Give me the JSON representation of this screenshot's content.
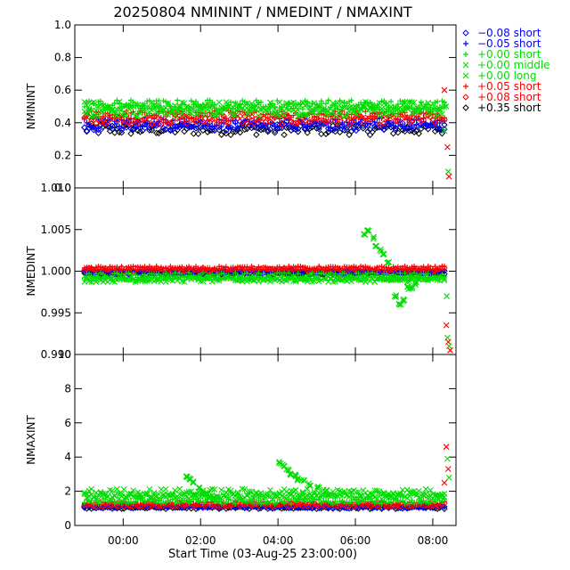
{
  "chart_data": {
    "type": "scatter",
    "title": "20250804 NMININT / NMEDINT / NMAXINT",
    "xlabel": "Start Time (03-Aug-25 23:00:00)",
    "x_unit": "hours since 03-Aug-25 23:00",
    "xlim": [
      -0.25,
      9.6
    ],
    "x_ticks": [
      1,
      3,
      5,
      7,
      9
    ],
    "x_tick_labels": [
      "00:00",
      "02:00",
      "04:00",
      "06:00",
      "08:00"
    ],
    "legend_position": "top-right",
    "legend": [
      {
        "marker": "diamond",
        "color": "#0000ff",
        "label": "−0.08 short"
      },
      {
        "marker": "plus",
        "color": "#0000ff",
        "label": "−0.05 short"
      },
      {
        "marker": "plus",
        "color": "#00dd00",
        "label": "+0.00 short"
      },
      {
        "marker": "cross",
        "color": "#00dd00",
        "label": "+0.00 middle"
      },
      {
        "marker": "cross",
        "color": "#00dd00",
        "label": "+0.00 long"
      },
      {
        "marker": "plus",
        "color": "#ff0000",
        "label": "+0.05 short"
      },
      {
        "marker": "diamond",
        "color": "#ff0000",
        "label": "+0.08 short"
      },
      {
        "marker": "diamond",
        "color": "#000000",
        "label": "+0.35 short"
      }
    ],
    "panels": [
      {
        "ylabel": "NMININT",
        "ylim": [
          0.0,
          1.0
        ],
        "y_ticks": [
          0.0,
          0.2,
          0.4,
          0.6,
          0.8,
          1.0
        ],
        "y_tick_labels": [
          "0.0",
          "0.2",
          "0.4",
          "0.6",
          "0.8",
          "1.0"
        ],
        "series": [
          {
            "legend_index": 7,
            "base": 0.36,
            "noise": 0.035
          },
          {
            "legend_index": 0,
            "base": 0.38,
            "noise": 0.03
          },
          {
            "legend_index": 1,
            "base": 0.4,
            "noise": 0.03
          },
          {
            "legend_index": 6,
            "base": 0.42,
            "noise": 0.03
          },
          {
            "legend_index": 5,
            "base": 0.45,
            "noise": 0.025
          },
          {
            "legend_index": 4,
            "base": 0.47,
            "noise": 0.03
          },
          {
            "legend_index": 3,
            "base": 0.5,
            "noise": 0.03
          },
          {
            "legend_index": 2,
            "base": 0.51,
            "noise": 0.03
          }
        ],
        "end_points": [
          [
            9.3,
            0.6
          ],
          [
            9.35,
            0.5
          ],
          [
            9.38,
            0.25
          ],
          [
            9.4,
            0.1
          ],
          [
            9.42,
            0.07
          ],
          [
            9.3,
            0.35
          ]
        ]
      },
      {
        "ylabel": "NMEDINT",
        "ylim": [
          0.99,
          1.01
        ],
        "y_ticks": [
          0.99,
          0.995,
          1.0,
          1.005,
          1.01
        ],
        "y_tick_labels": [
          "0.990",
          "0.995",
          "1.000",
          "1.005",
          "1.010"
        ],
        "series": [
          {
            "legend_index": 4,
            "base": 0.999,
            "noise": 0.0003
          },
          {
            "legend_index": 3,
            "base": 0.9992,
            "noise": 0.0003
          },
          {
            "legend_index": 7,
            "base": 0.9998,
            "noise": 0.00015
          },
          {
            "legend_index": 0,
            "base": 0.9999,
            "noise": 0.0002
          },
          {
            "legend_index": 1,
            "base": 1.0001,
            "noise": 0.0002
          },
          {
            "legend_index": 6,
            "base": 1.0002,
            "noise": 0.0002
          },
          {
            "legend_index": 5,
            "base": 1.0004,
            "noise": 0.0002
          },
          {
            "legend_index": 2,
            "base": 0.9995,
            "noise": 0.0003
          }
        ],
        "excursion": {
          "x": [
            7.2,
            7.3,
            7.4,
            7.5,
            7.6,
            7.7,
            7.8,
            7.9,
            8.0,
            8.1,
            8.2,
            8.3,
            8.4,
            8.5
          ],
          "y": [
            1.0045,
            1.0048,
            1.004,
            1.003,
            1.0025,
            1.002,
            1.001,
            0.999,
            0.997,
            0.996,
            0.9965,
            0.998,
            0.998,
            0.9985
          ]
        },
        "end_points": [
          [
            9.35,
            0.9935
          ],
          [
            9.38,
            0.992
          ],
          [
            9.4,
            0.9915
          ],
          [
            9.42,
            0.991
          ],
          [
            9.45,
            0.9905
          ],
          [
            9.36,
            0.997
          ]
        ]
      },
      {
        "ylabel": "NMAXINT",
        "ylim": [
          0,
          10
        ],
        "y_ticks": [
          0,
          2,
          4,
          6,
          8,
          10
        ],
        "y_tick_labels": [
          "0",
          "2",
          "4",
          "6",
          "8",
          "10"
        ],
        "series": [
          {
            "legend_index": 7,
            "base": 1.05,
            "noise": 0.08
          },
          {
            "legend_index": 0,
            "base": 1.1,
            "noise": 0.08
          },
          {
            "legend_index": 1,
            "base": 1.15,
            "noise": 0.08
          },
          {
            "legend_index": 6,
            "base": 1.2,
            "noise": 0.1
          },
          {
            "legend_index": 5,
            "base": 1.3,
            "noise": 0.12
          },
          {
            "legend_index": 2,
            "base": 1.4,
            "noise": 0.15
          },
          {
            "legend_index": 3,
            "base": 1.7,
            "noise": 0.2
          },
          {
            "legend_index": 4,
            "base": 1.9,
            "noise": 0.25
          }
        ],
        "excursion": {
          "x": [
            2.6,
            2.7,
            2.8,
            2.9,
            3.0,
            3.1,
            3.2,
            3.3,
            3.4,
            5.0,
            5.1,
            5.2,
            5.3,
            5.4,
            5.5,
            5.6,
            5.8,
            6.0,
            6.2
          ],
          "y": [
            2.9,
            2.7,
            2.5,
            2.2,
            2.0,
            1.8,
            1.7,
            1.6,
            1.5,
            3.7,
            3.5,
            3.2,
            3.0,
            2.9,
            2.7,
            2.6,
            2.4,
            2.2,
            2.0
          ]
        },
        "end_points": [
          [
            9.35,
            4.6
          ],
          [
            9.38,
            3.9
          ],
          [
            9.4,
            3.3
          ],
          [
            9.42,
            2.8
          ],
          [
            9.3,
            2.5
          ]
        ]
      }
    ]
  }
}
